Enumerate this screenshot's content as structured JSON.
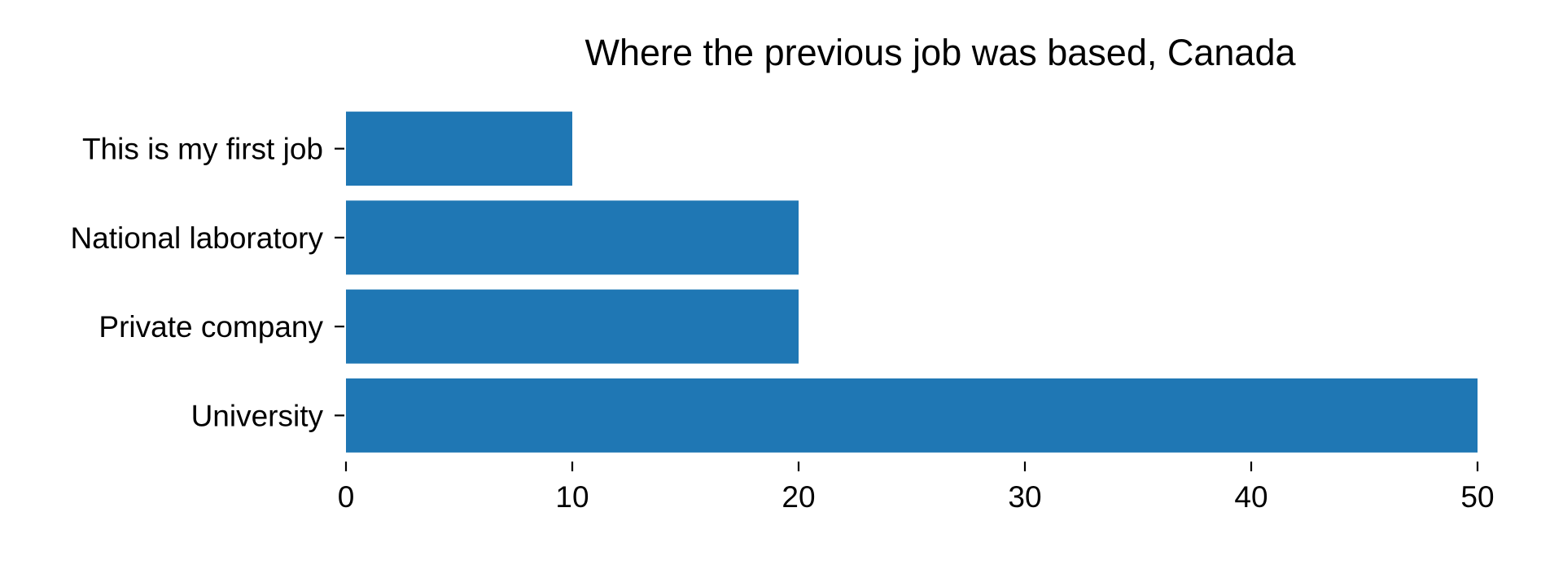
{
  "chart_data": {
    "type": "bar",
    "orientation": "horizontal",
    "title": "Where the previous job was based, Canada",
    "xlabel": "",
    "ylabel": "",
    "categories": [
      "University",
      "Private company",
      "National laboratory",
      "This is my first job"
    ],
    "values": [
      50,
      20,
      20,
      10
    ],
    "xlim": [
      0,
      50
    ],
    "x_ticks": [
      0,
      10,
      20,
      30,
      40,
      50
    ],
    "x_tick_labels": [
      "0",
      "10",
      "20",
      "30",
      "40",
      "50"
    ],
    "grid": false,
    "legend": "none",
    "bar_color": "#1f77b4"
  }
}
